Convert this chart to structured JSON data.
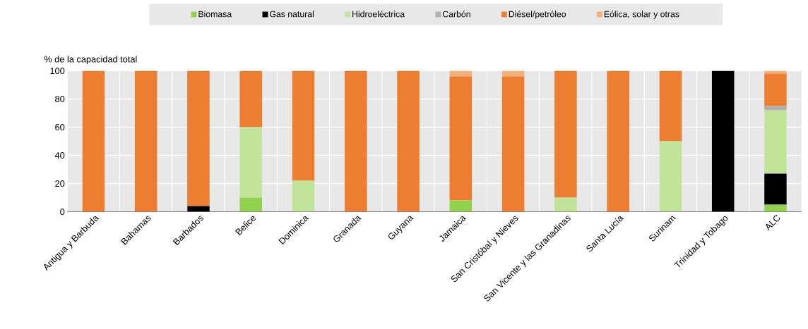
{
  "chart_data": {
    "type": "bar",
    "stacked": true,
    "ylabel": "% de la capacidad total",
    "categories": [
      "Antigua y Barbuda",
      "Bahamas",
      "Barbados",
      "Belice",
      "Dominica",
      "Granada",
      "Guyana",
      "Jamaica",
      "San Cristóbal y Nieves",
      "San Vicente y las Granadinas",
      "Santa Lucía",
      "Surinam",
      "Trinidad y Tobago",
      "ALC"
    ],
    "series": [
      {
        "name": "Biomasa",
        "color": "#92d050",
        "values": [
          0,
          0,
          0,
          10,
          0,
          0,
          0,
          8,
          0,
          0,
          0,
          0,
          0,
          5
        ]
      },
      {
        "name": "Gas natural",
        "color": "#000000",
        "values": [
          0,
          0,
          4,
          0,
          0,
          0,
          0,
          0,
          0,
          0,
          0,
          0,
          100,
          22
        ]
      },
      {
        "name": "Hidroeléctrica",
        "color": "#c2e49a",
        "values": [
          0,
          0,
          0,
          50,
          22,
          0,
          0,
          0,
          0,
          10,
          0,
          50,
          0,
          45
        ]
      },
      {
        "name": "Carbón",
        "color": "#b0b0b0",
        "values": [
          0,
          0,
          0,
          0,
          0,
          0,
          0,
          0,
          0,
          0,
          0,
          0,
          0,
          3
        ]
      },
      {
        "name": "Diésel/petróleo",
        "color": "#ed7d31",
        "values": [
          100,
          100,
          96,
          40,
          78,
          100,
          100,
          88,
          96,
          90,
          100,
          50,
          0,
          23
        ]
      },
      {
        "name": "Eólica, solar y otras",
        "color": "#f4b07a",
        "values": [
          0,
          0,
          0,
          0,
          0,
          0,
          0,
          4,
          4,
          0,
          0,
          0,
          0,
          2
        ]
      }
    ],
    "ylim": [
      0,
      100
    ],
    "yticks": [
      0,
      20,
      40,
      60,
      80,
      100
    ],
    "grid": true,
    "legend": "top"
  }
}
